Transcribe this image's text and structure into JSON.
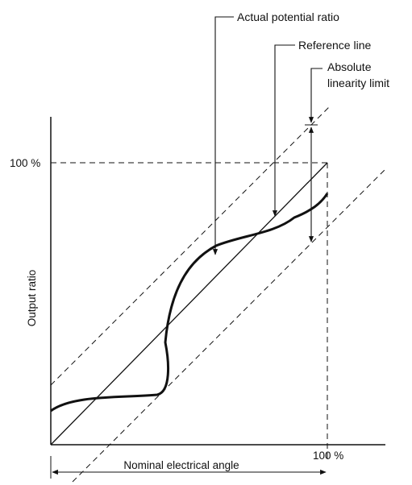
{
  "diagram": {
    "labels": {
      "actual_potential_ratio": "Actual potential ratio",
      "reference_line": "Reference line",
      "absolute_linearity_limit_line1": "Absolute",
      "absolute_linearity_limit_line2": "linearity limit",
      "y_axis": "Output ratio",
      "y_100": "100 %",
      "x_100": "100 %",
      "x_axis": "Nominal electrical angle"
    },
    "colors": {
      "ink": "#111111",
      "background": "#ffffff"
    }
  }
}
